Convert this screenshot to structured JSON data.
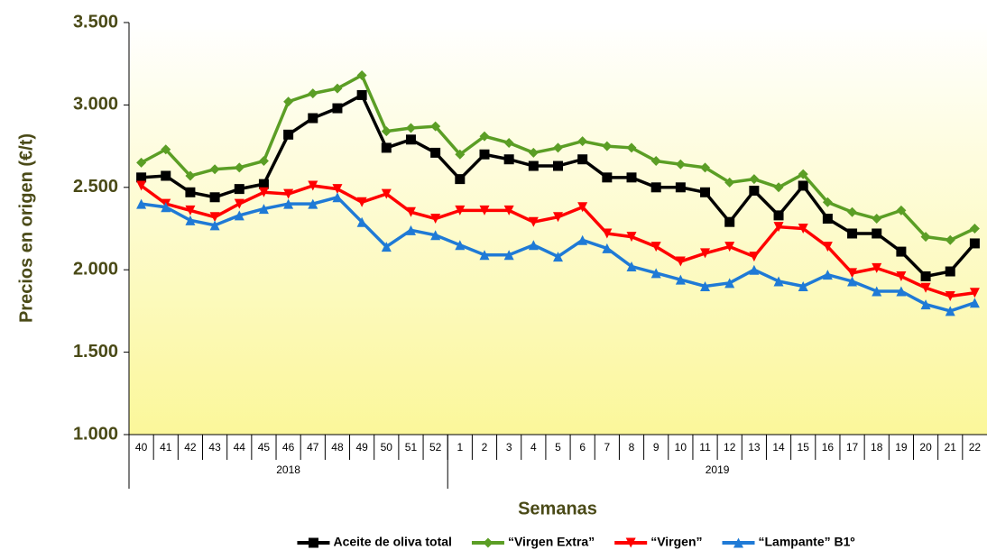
{
  "chart_data": {
    "type": "line",
    "y_label": "Precios en origen (€/t)",
    "x_label": "Semanas",
    "categories": [
      "40",
      "41",
      "42",
      "43",
      "44",
      "45",
      "46",
      "47",
      "48",
      "49",
      "50",
      "51",
      "52",
      "1",
      "2",
      "3",
      "4",
      "5",
      "6",
      "7",
      "8",
      "9",
      "10",
      "11",
      "12",
      "13",
      "14",
      "15",
      "16",
      "17",
      "18",
      "19",
      "20",
      "21",
      "22"
    ],
    "groups": [
      {
        "label": "2018",
        "count": 13
      },
      {
        "label": "2019",
        "count": 22
      }
    ],
    "ylim": [
      1000,
      3500
    ],
    "yticks": [
      {
        "value": 1000,
        "label": "1.000"
      },
      {
        "value": 1500,
        "label": "1.500"
      },
      {
        "value": 2000,
        "label": "2.000"
      },
      {
        "value": 2500,
        "label": "2.500"
      },
      {
        "value": 3000,
        "label": "3.000"
      },
      {
        "value": 3500,
        "label": "3.500"
      }
    ],
    "grid": false,
    "legend": "bottom",
    "series": [
      {
        "name": "Aceite de oliva total",
        "color": "#000000",
        "marker": "square",
        "values": [
          2560,
          2570,
          2470,
          2440,
          2490,
          2520,
          2820,
          2920,
          2980,
          3060,
          2740,
          2790,
          2710,
          2550,
          2700,
          2670,
          2630,
          2630,
          2670,
          2560,
          2560,
          2500,
          2500,
          2470,
          2290,
          2480,
          2330,
          2510,
          2310,
          2220,
          2220,
          2110,
          1960,
          1990,
          2160
        ]
      },
      {
        "name": "“Virgen Extra”",
        "color": "#5b9e25",
        "marker": "diamond",
        "values": [
          2650,
          2730,
          2570,
          2610,
          2620,
          2660,
          3020,
          3070,
          3100,
          3180,
          2840,
          2860,
          2870,
          2700,
          2810,
          2770,
          2710,
          2740,
          2780,
          2750,
          2740,
          2660,
          2640,
          2620,
          2530,
          2550,
          2500,
          2580,
          2410,
          2350,
          2310,
          2360,
          2200,
          2180,
          2250
        ]
      },
      {
        "name": "“Virgen”",
        "color": "#ff0000",
        "marker": "triangle-down",
        "values": [
          2510,
          2400,
          2360,
          2320,
          2400,
          2470,
          2460,
          2510,
          2490,
          2410,
          2460,
          2350,
          2310,
          2360,
          2360,
          2360,
          2290,
          2320,
          2380,
          2220,
          2200,
          2140,
          2050,
          2100,
          2140,
          2080,
          2260,
          2250,
          2140,
          1980,
          2010,
          1960,
          1890,
          1840,
          1860
        ]
      },
      {
        "name": "“Lampante” B1º",
        "color": "#1f7ad6",
        "marker": "triangle-up",
        "values": [
          2400,
          2380,
          2300,
          2270,
          2330,
          2370,
          2400,
          2400,
          2440,
          2290,
          2140,
          2240,
          2210,
          2150,
          2090,
          2090,
          2150,
          2080,
          2180,
          2130,
          2020,
          1980,
          1940,
          1900,
          1920,
          2000,
          1930,
          1900,
          1970,
          1930,
          1870,
          1870,
          1790,
          1750,
          1800
        ]
      }
    ]
  }
}
